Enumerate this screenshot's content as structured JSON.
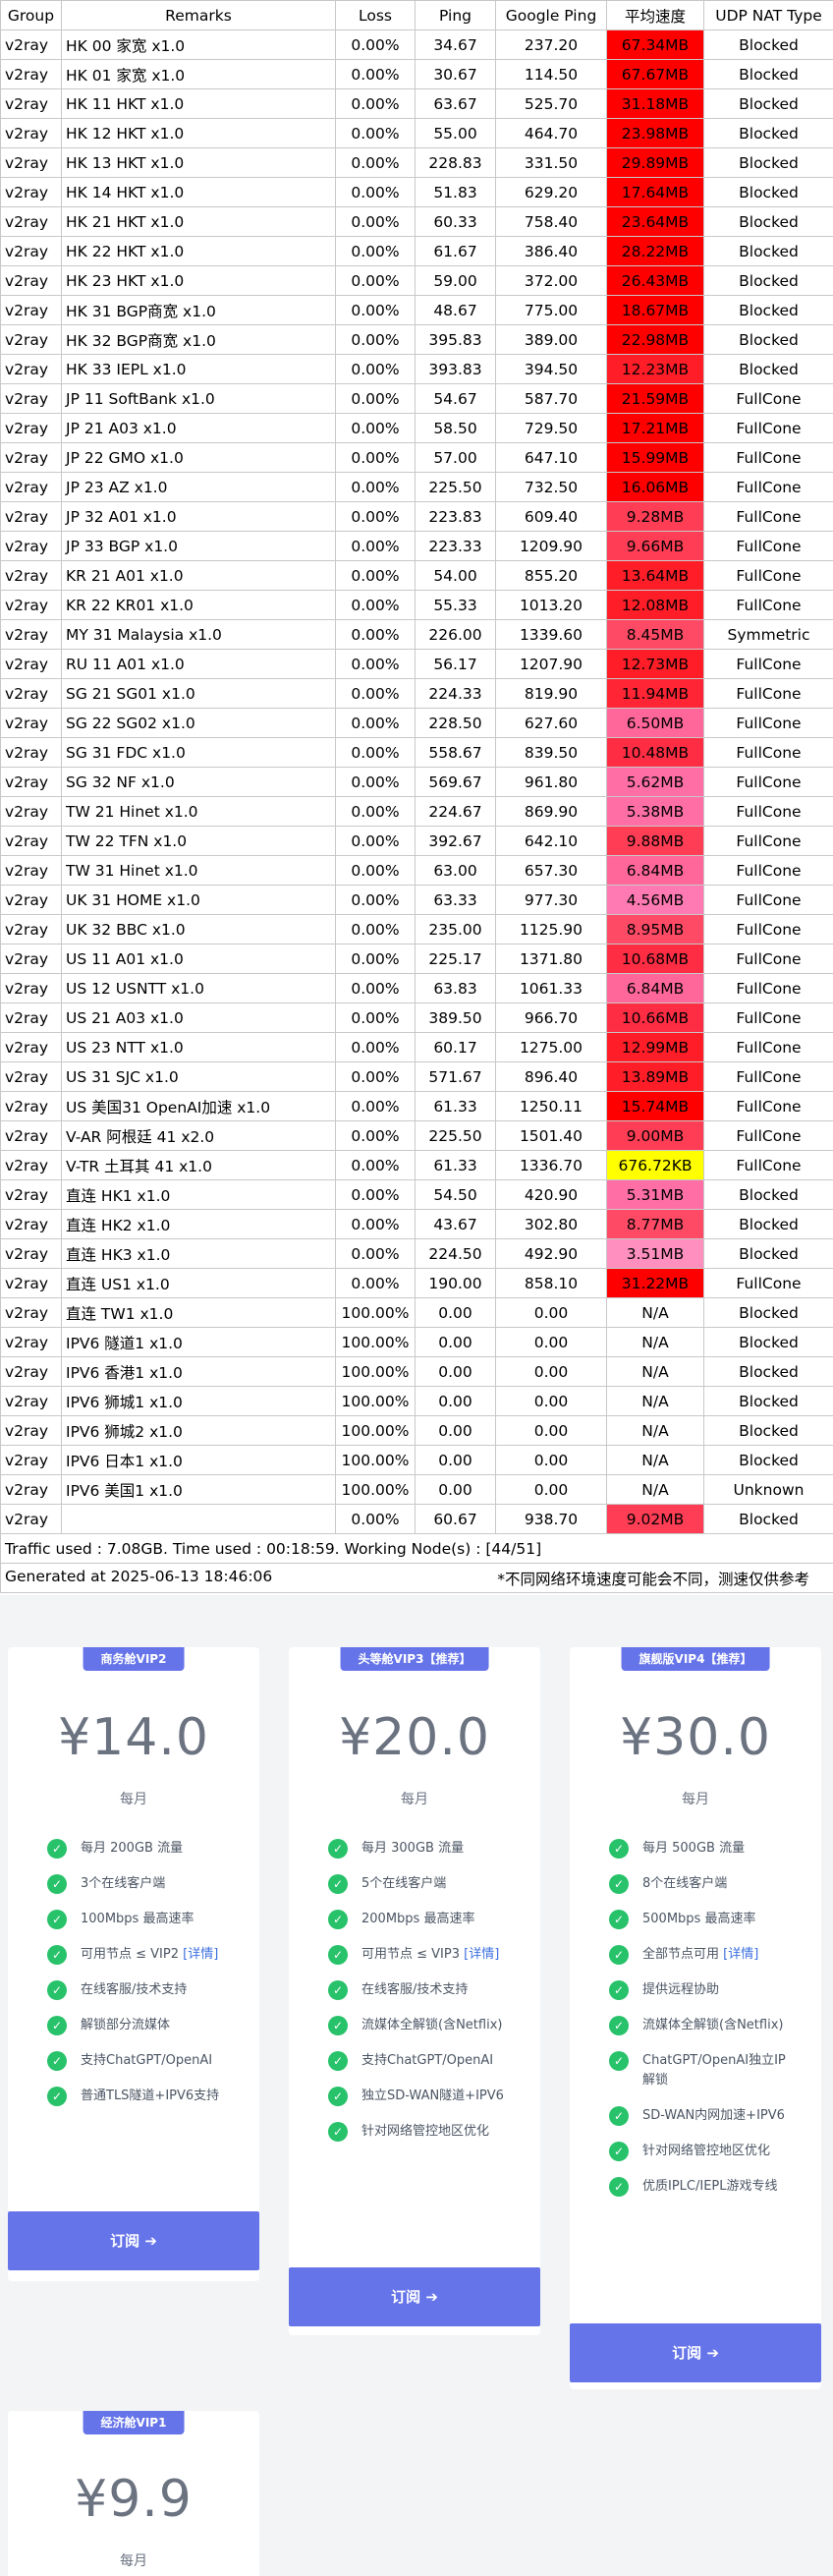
{
  "table": {
    "headers": [
      "Group",
      "Remarks",
      "Loss",
      "Ping",
      "Google Ping",
      "平均速度",
      "UDP NAT Type"
    ],
    "rows": [
      {
        "group": "v2ray",
        "remarks": "HK 00 家宽 x1.0",
        "loss": "0.00%",
        "ping": "34.67",
        "gping": "237.20",
        "speed": "67.34MB",
        "color": "#ff0000",
        "udp": "Blocked"
      },
      {
        "group": "v2ray",
        "remarks": "HK 01 家宽 x1.0",
        "loss": "0.00%",
        "ping": "30.67",
        "gping": "114.50",
        "speed": "67.67MB",
        "color": "#ff0000",
        "udp": "Blocked"
      },
      {
        "group": "v2ray",
        "remarks": "HK 11 HKT x1.0",
        "loss": "0.00%",
        "ping": "63.67",
        "gping": "525.70",
        "speed": "31.18MB",
        "color": "#ff0000",
        "udp": "Blocked"
      },
      {
        "group": "v2ray",
        "remarks": "HK 12 HKT x1.0",
        "loss": "0.00%",
        "ping": "55.00",
        "gping": "464.70",
        "speed": "23.98MB",
        "color": "#ff0000",
        "udp": "Blocked"
      },
      {
        "group": "v2ray",
        "remarks": "HK 13 HKT x1.0",
        "loss": "0.00%",
        "ping": "228.83",
        "gping": "331.50",
        "speed": "29.89MB",
        "color": "#ff0000",
        "udp": "Blocked"
      },
      {
        "group": "v2ray",
        "remarks": "HK 14 HKT x1.0",
        "loss": "0.00%",
        "ping": "51.83",
        "gping": "629.20",
        "speed": "17.64MB",
        "color": "#ff0000",
        "udp": "Blocked"
      },
      {
        "group": "v2ray",
        "remarks": "HK 21 HKT x1.0",
        "loss": "0.00%",
        "ping": "60.33",
        "gping": "758.40",
        "speed": "23.64MB",
        "color": "#ff0000",
        "udp": "Blocked"
      },
      {
        "group": "v2ray",
        "remarks": "HK 22 HKT x1.0",
        "loss": "0.00%",
        "ping": "61.67",
        "gping": "386.40",
        "speed": "28.22MB",
        "color": "#ff0000",
        "udp": "Blocked"
      },
      {
        "group": "v2ray",
        "remarks": "HK 23 HKT x1.0",
        "loss": "0.00%",
        "ping": "59.00",
        "gping": "372.00",
        "speed": "26.43MB",
        "color": "#ff0000",
        "udp": "Blocked"
      },
      {
        "group": "v2ray",
        "remarks": "HK 31 BGP商宽 x1.0",
        "loss": "0.00%",
        "ping": "48.67",
        "gping": "775.00",
        "speed": "18.67MB",
        "color": "#ff0000",
        "udp": "Blocked"
      },
      {
        "group": "v2ray",
        "remarks": "HK 32 BGP商宽 x1.0",
        "loss": "0.00%",
        "ping": "395.83",
        "gping": "389.00",
        "speed": "22.98MB",
        "color": "#ff0000",
        "udp": "Blocked"
      },
      {
        "group": "v2ray",
        "remarks": "HK 33 IEPL x1.0",
        "loss": "0.00%",
        "ping": "393.83",
        "gping": "394.50",
        "speed": "12.23MB",
        "color": "#ff1e28",
        "udp": "Blocked"
      },
      {
        "group": "v2ray",
        "remarks": "JP 11 SoftBank x1.0",
        "loss": "0.00%",
        "ping": "54.67",
        "gping": "587.70",
        "speed": "21.59MB",
        "color": "#ff0000",
        "udp": "FullCone"
      },
      {
        "group": "v2ray",
        "remarks": "JP 21 A03 x1.0",
        "loss": "0.00%",
        "ping": "58.50",
        "gping": "729.50",
        "speed": "17.21MB",
        "color": "#ff0000",
        "udp": "FullCone"
      },
      {
        "group": "v2ray",
        "remarks": "JP 22 GMO x1.0",
        "loss": "0.00%",
        "ping": "57.00",
        "gping": "647.10",
        "speed": "15.99MB",
        "color": "#ff0000",
        "udp": "FullCone"
      },
      {
        "group": "v2ray",
        "remarks": "JP 23 AZ x1.0",
        "loss": "0.00%",
        "ping": "225.50",
        "gping": "732.50",
        "speed": "16.06MB",
        "color": "#ff0000",
        "udp": "FullCone"
      },
      {
        "group": "v2ray",
        "remarks": "JP 32 A01 x1.0",
        "loss": "0.00%",
        "ping": "223.83",
        "gping": "609.40",
        "speed": "9.28MB",
        "color": "#ff3d55",
        "udp": "FullCone"
      },
      {
        "group": "v2ray",
        "remarks": "JP 33 BGP x1.0",
        "loss": "0.00%",
        "ping": "223.33",
        "gping": "1209.90",
        "speed": "9.66MB",
        "color": "#ff3d55",
        "udp": "FullCone"
      },
      {
        "group": "v2ray",
        "remarks": "KR 21 A01 x1.0",
        "loss": "0.00%",
        "ping": "54.00",
        "gping": "855.20",
        "speed": "13.64MB",
        "color": "#ff1e28",
        "udp": "FullCone"
      },
      {
        "group": "v2ray",
        "remarks": "KR 22 KR01 x1.0",
        "loss": "0.00%",
        "ping": "55.33",
        "gping": "1013.20",
        "speed": "12.08MB",
        "color": "#ff1e28",
        "udp": "FullCone"
      },
      {
        "group": "v2ray",
        "remarks": "MY 31 Malaysia x1.0",
        "loss": "0.00%",
        "ping": "226.00",
        "gping": "1339.60",
        "speed": "8.45MB",
        "color": "#ff4a66",
        "udp": "Symmetric"
      },
      {
        "group": "v2ray",
        "remarks": "RU 11 A01 x1.0",
        "loss": "0.00%",
        "ping": "56.17",
        "gping": "1207.90",
        "speed": "12.73MB",
        "color": "#ff1e28",
        "udp": "FullCone"
      },
      {
        "group": "v2ray",
        "remarks": "SG 21 SG01 x1.0",
        "loss": "0.00%",
        "ping": "224.33",
        "gping": "819.90",
        "speed": "11.94MB",
        "color": "#ff2535",
        "udp": "FullCone"
      },
      {
        "group": "v2ray",
        "remarks": "SG 22 SG02 x1.0",
        "loss": "0.00%",
        "ping": "228.50",
        "gping": "627.60",
        "speed": "6.50MB",
        "color": "#ff6699",
        "udp": "FullCone"
      },
      {
        "group": "v2ray",
        "remarks": "SG 31 FDC x1.0",
        "loss": "0.00%",
        "ping": "558.67",
        "gping": "839.50",
        "speed": "10.48MB",
        "color": "#ff2d44",
        "udp": "FullCone"
      },
      {
        "group": "v2ray",
        "remarks": "SG 32 NF x1.0",
        "loss": "0.00%",
        "ping": "569.67",
        "gping": "961.80",
        "speed": "5.62MB",
        "color": "#ff6fa6",
        "udp": "FullCone"
      },
      {
        "group": "v2ray",
        "remarks": "TW 21 Hinet x1.0",
        "loss": "0.00%",
        "ping": "224.67",
        "gping": "869.90",
        "speed": "5.38MB",
        "color": "#ff6fa6",
        "udp": "FullCone"
      },
      {
        "group": "v2ray",
        "remarks": "TW 22 TFN x1.0",
        "loss": "0.00%",
        "ping": "392.67",
        "gping": "642.10",
        "speed": "9.88MB",
        "color": "#ff3d55",
        "udp": "FullCone"
      },
      {
        "group": "v2ray",
        "remarks": "TW 31 Hinet x1.0",
        "loss": "0.00%",
        "ping": "63.00",
        "gping": "657.30",
        "speed": "6.84MB",
        "color": "#ff6699",
        "udp": "FullCone"
      },
      {
        "group": "v2ray",
        "remarks": "UK 31 HOME x1.0",
        "loss": "0.00%",
        "ping": "63.33",
        "gping": "977.30",
        "speed": "4.56MB",
        "color": "#ff7ab2",
        "udp": "FullCone"
      },
      {
        "group": "v2ray",
        "remarks": "UK 32 BBC x1.0",
        "loss": "0.00%",
        "ping": "235.00",
        "gping": "1125.90",
        "speed": "8.95MB",
        "color": "#ff4a66",
        "udp": "FullCone"
      },
      {
        "group": "v2ray",
        "remarks": "US 11 A01 x1.0",
        "loss": "0.00%",
        "ping": "225.17",
        "gping": "1371.80",
        "speed": "10.68MB",
        "color": "#ff2d44",
        "udp": "FullCone"
      },
      {
        "group": "v2ray",
        "remarks": "US 12 USNTT x1.0",
        "loss": "0.00%",
        "ping": "63.83",
        "gping": "1061.33",
        "speed": "6.84MB",
        "color": "#ff6699",
        "udp": "FullCone"
      },
      {
        "group": "v2ray",
        "remarks": "US 21 A03 x1.0",
        "loss": "0.00%",
        "ping": "389.50",
        "gping": "966.70",
        "speed": "10.66MB",
        "color": "#ff2d44",
        "udp": "FullCone"
      },
      {
        "group": "v2ray",
        "remarks": "US 23 NTT x1.0",
        "loss": "0.00%",
        "ping": "60.17",
        "gping": "1275.00",
        "speed": "12.99MB",
        "color": "#ff1e28",
        "udp": "FullCone"
      },
      {
        "group": "v2ray",
        "remarks": "US 31 SJC x1.0",
        "loss": "0.00%",
        "ping": "571.67",
        "gping": "896.40",
        "speed": "13.89MB",
        "color": "#ff1e28",
        "udp": "FullCone"
      },
      {
        "group": "v2ray",
        "remarks": "US 美国31 OpenAI加速 x1.0",
        "loss": "0.00%",
        "ping": "61.33",
        "gping": "1250.11",
        "speed": "15.74MB",
        "color": "#ff0000",
        "udp": "FullCone"
      },
      {
        "group": "v2ray",
        "remarks": "V-AR 阿根廷 41 x2.0",
        "loss": "0.00%",
        "ping": "225.50",
        "gping": "1501.40",
        "speed": "9.00MB",
        "color": "#ff3d55",
        "udp": "FullCone"
      },
      {
        "group": "v2ray",
        "remarks": "V-TR 土耳其 41 x1.0",
        "loss": "0.00%",
        "ping": "61.33",
        "gping": "1336.70",
        "speed": "676.72KB",
        "color": "#ffff00",
        "udp": "FullCone"
      },
      {
        "group": "v2ray",
        "remarks": "直连 HK1 x1.0",
        "loss": "0.00%",
        "ping": "54.50",
        "gping": "420.90",
        "speed": "5.31MB",
        "color": "#ff6fa6",
        "udp": "Blocked"
      },
      {
        "group": "v2ray",
        "remarks": "直连 HK2 x1.0",
        "loss": "0.00%",
        "ping": "43.67",
        "gping": "302.80",
        "speed": "8.77MB",
        "color": "#ff4a66",
        "udp": "Blocked"
      },
      {
        "group": "v2ray",
        "remarks": "直连 HK3 x1.0",
        "loss": "0.00%",
        "ping": "224.50",
        "gping": "492.90",
        "speed": "3.51MB",
        "color": "#ff8fbf",
        "udp": "Blocked"
      },
      {
        "group": "v2ray",
        "remarks": "直连 US1 x1.0",
        "loss": "0.00%",
        "ping": "190.00",
        "gping": "858.10",
        "speed": "31.22MB",
        "color": "#ff0000",
        "udp": "FullCone"
      },
      {
        "group": "v2ray",
        "remarks": "直连 TW1 x1.0",
        "loss": "100.00%",
        "ping": "0.00",
        "gping": "0.00",
        "speed": "N/A",
        "color": "#ffffff",
        "udp": "Blocked"
      },
      {
        "group": "v2ray",
        "remarks": "IPV6 隧道1 x1.0",
        "loss": "100.00%",
        "ping": "0.00",
        "gping": "0.00",
        "speed": "N/A",
        "color": "#ffffff",
        "udp": "Blocked"
      },
      {
        "group": "v2ray",
        "remarks": "IPV6 香港1 x1.0",
        "loss": "100.00%",
        "ping": "0.00",
        "gping": "0.00",
        "speed": "N/A",
        "color": "#ffffff",
        "udp": "Blocked"
      },
      {
        "group": "v2ray",
        "remarks": "IPV6 狮城1 x1.0",
        "loss": "100.00%",
        "ping": "0.00",
        "gping": "0.00",
        "speed": "N/A",
        "color": "#ffffff",
        "udp": "Blocked"
      },
      {
        "group": "v2ray",
        "remarks": "IPV6 狮城2 x1.0",
        "loss": "100.00%",
        "ping": "0.00",
        "gping": "0.00",
        "speed": "N/A",
        "color": "#ffffff",
        "udp": "Blocked"
      },
      {
        "group": "v2ray",
        "remarks": "IPV6 日本1 x1.0",
        "loss": "100.00%",
        "ping": "0.00",
        "gping": "0.00",
        "speed": "N/A",
        "color": "#ffffff",
        "udp": "Blocked"
      },
      {
        "group": "v2ray",
        "remarks": "IPV6 美国1 x1.0",
        "loss": "100.00%",
        "ping": "0.00",
        "gping": "0.00",
        "speed": "N/A",
        "color": "#ffffff",
        "udp": "Unknown"
      },
      {
        "group": "v2ray",
        "remarks": "",
        "loss": "0.00%",
        "ping": "60.67",
        "gping": "938.70",
        "speed": "9.02MB",
        "color": "#ff3d55",
        "udp": "Blocked"
      }
    ],
    "traffic_line": "Traffic used : 7.08GB. Time used : 00:18:59. Working Node(s) : [44/51]",
    "generated_at": "Generated at 2025-06-13 18:46:06",
    "disclaimer": "*不同网络环境速度可能会不同，测速仅供参考"
  },
  "plans": [
    {
      "badge": "商务舱VIP2",
      "price": "¥14.0",
      "period": "每月",
      "features": [
        {
          "text": "每月 200GB 流量"
        },
        {
          "text": "3个在线客户端"
        },
        {
          "text": "100Mbps 最高速率"
        },
        {
          "text": "可用节点 ≤ VIP2",
          "link": "[详情]"
        },
        {
          "text": "在线客服/技术支持"
        },
        {
          "text": "解锁部分流媒体"
        },
        {
          "text": "支持ChatGPT/OpenAI"
        },
        {
          "text": "普通TLS隧道+IPV6支持"
        }
      ],
      "button": "订阅"
    },
    {
      "badge": "头等舱VIP3【推荐】",
      "price": "¥20.0",
      "period": "每月",
      "features": [
        {
          "text": "每月 300GB 流量"
        },
        {
          "text": "5个在线客户端"
        },
        {
          "text": "200Mbps 最高速率"
        },
        {
          "text": "可用节点 ≤ VIP3",
          "link": "[详情]"
        },
        {
          "text": "在线客服/技术支持"
        },
        {
          "text": "流媒体全解锁(含Netflix)"
        },
        {
          "text": "支持ChatGPT/OpenAI"
        },
        {
          "text": "独立SD-WAN隧道+IPV6"
        },
        {
          "text": "针对网络管控地区优化"
        }
      ],
      "button": "订阅"
    },
    {
      "badge": "旗舰版VIP4【推荐】",
      "price": "¥30.0",
      "period": "每月",
      "features": [
        {
          "text": "每月 500GB 流量"
        },
        {
          "text": "8个在线客户端"
        },
        {
          "text": "500Mbps 最高速率"
        },
        {
          "text": "全部节点可用",
          "link": "[详情]"
        },
        {
          "text": "提供远程协助"
        },
        {
          "text": "流媒体全解锁(含Netflix)"
        },
        {
          "text": "ChatGPT/OpenAI独立IP解锁"
        },
        {
          "text": "SD-WAN内网加速+IPV6"
        },
        {
          "text": "针对网络管控地区优化"
        },
        {
          "text": "优质IPLC/IEPL游戏专线"
        }
      ],
      "button": "订阅"
    },
    {
      "badge": "经济舱VIP1",
      "price": "¥9.9",
      "period": "每月",
      "features": [],
      "button": ""
    }
  ]
}
